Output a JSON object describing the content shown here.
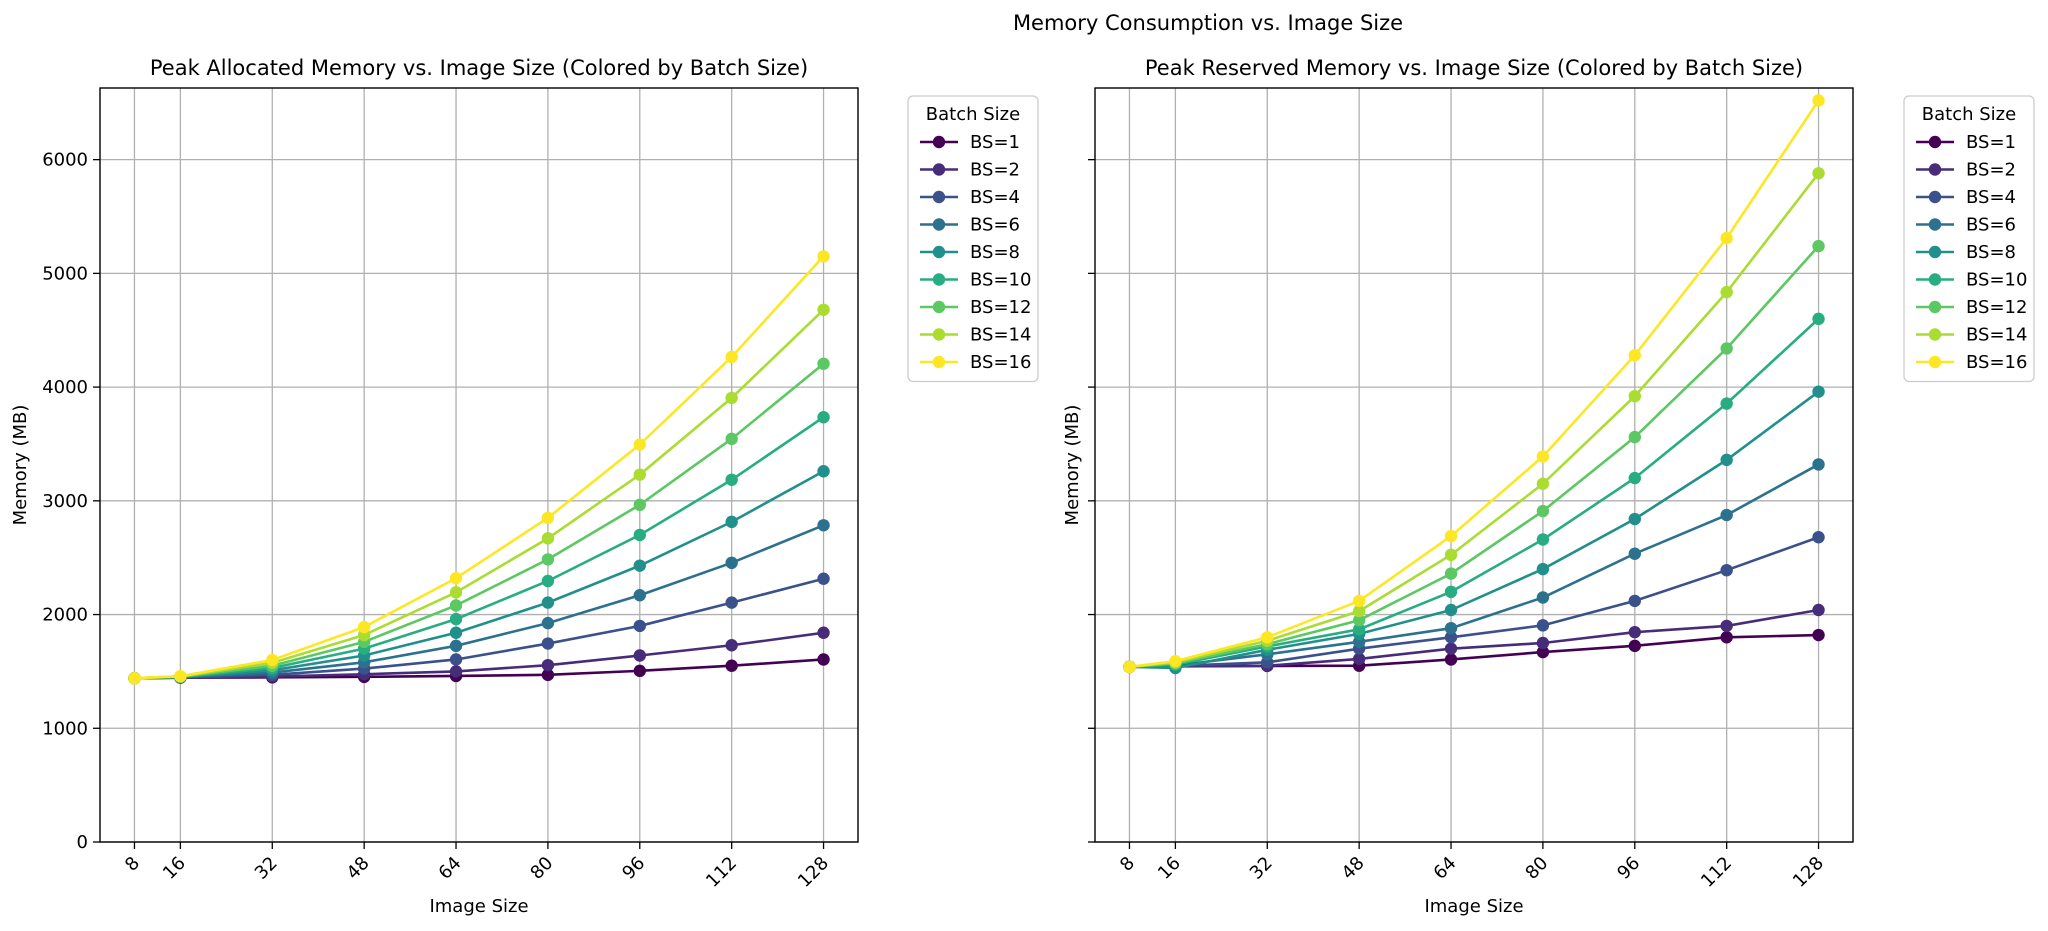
{
  "figure_title": "Memory Consumption vs. Image Size",
  "chart_data": [
    {
      "type": "line",
      "title": "Peak Allocated Memory vs. Image Size (Colored by Batch Size)",
      "xlabel": "Image Size",
      "ylabel": "Memory (MB)",
      "x": [
        8,
        16,
        32,
        48,
        64,
        80,
        96,
        112,
        128
      ],
      "xticks": [
        "8",
        "16",
        "32",
        "48",
        "64",
        "80",
        "96",
        "112",
        "128"
      ],
      "xlim": [
        2,
        134
      ],
      "ylim": [
        0,
        6630
      ],
      "yticks": [
        "0",
        "1000",
        "2000",
        "3000",
        "4000",
        "5000",
        "6000"
      ],
      "grid": true,
      "legend_title": "Batch Size",
      "legend_position": "outside-top-right",
      "series": [
        {
          "name": "BS=1",
          "color": "#440154",
          "values": [
            1440,
            1445,
            1448,
            1452,
            1460,
            1470,
            1505,
            1550,
            1605
          ]
        },
        {
          "name": "BS=2",
          "color": "#472c7a",
          "values": [
            1440,
            1445,
            1455,
            1475,
            1500,
            1555,
            1640,
            1730,
            1840
          ]
        },
        {
          "name": "BS=4",
          "color": "#3b518b",
          "values": [
            1440,
            1446,
            1470,
            1525,
            1605,
            1745,
            1900,
            2105,
            2315
          ]
        },
        {
          "name": "BS=6",
          "color": "#2c718e",
          "values": [
            1440,
            1448,
            1490,
            1580,
            1725,
            1925,
            2170,
            2455,
            2785
          ]
        },
        {
          "name": "BS=8",
          "color": "#21908d",
          "values": [
            1440,
            1450,
            1510,
            1640,
            1840,
            2105,
            2430,
            2815,
            3260
          ]
        },
        {
          "name": "BS=10",
          "color": "#27ad81",
          "values": [
            1440,
            1452,
            1530,
            1700,
            1960,
            2295,
            2700,
            3185,
            3735
          ]
        },
        {
          "name": "BS=12",
          "color": "#5cc863",
          "values": [
            1440,
            1454,
            1550,
            1760,
            2080,
            2485,
            2965,
            3545,
            4205
          ]
        },
        {
          "name": "BS=14",
          "color": "#aadc32",
          "values": [
            1440,
            1456,
            1575,
            1820,
            2195,
            2670,
            3230,
            3905,
            4680
          ]
        },
        {
          "name": "BS=16",
          "color": "#fde725",
          "values": [
            1440,
            1458,
            1600,
            1890,
            2320,
            2850,
            3495,
            4265,
            5150
          ]
        }
      ]
    },
    {
      "type": "line",
      "title": "Peak Reserved Memory vs. Image Size (Colored by Batch Size)",
      "xlabel": "Image Size",
      "ylabel": "Memory (MB)",
      "x": [
        8,
        16,
        32,
        48,
        64,
        80,
        96,
        112,
        128
      ],
      "xticks": [
        "8",
        "16",
        "32",
        "48",
        "64",
        "80",
        "96",
        "112",
        "128"
      ],
      "xlim": [
        2,
        134
      ],
      "ylim": [
        0,
        6630
      ],
      "yticks": [
        "0",
        "1000",
        "2000",
        "3000",
        "4000",
        "5000",
        "6000"
      ],
      "grid": true,
      "legend_title": "Batch Size",
      "legend_position": "outside-top-right",
      "series": [
        {
          "name": "BS=1",
          "color": "#440154",
          "values": [
            1540,
            1545,
            1548,
            1550,
            1605,
            1670,
            1725,
            1800,
            1820
          ]
        },
        {
          "name": "BS=2",
          "color": "#472c7a",
          "values": [
            1540,
            1545,
            1550,
            1610,
            1700,
            1750,
            1845,
            1900,
            2040
          ]
        },
        {
          "name": "BS=4",
          "color": "#3b518b",
          "values": [
            1540,
            1548,
            1580,
            1700,
            1800,
            1905,
            2120,
            2390,
            2680
          ]
        },
        {
          "name": "BS=6",
          "color": "#2c718e",
          "values": [
            1540,
            1552,
            1650,
            1760,
            1880,
            2150,
            2535,
            2875,
            3320
          ]
        },
        {
          "name": "BS=8",
          "color": "#21908d",
          "values": [
            1540,
            1530,
            1690,
            1830,
            2040,
            2400,
            2840,
            3360,
            3960
          ]
        },
        {
          "name": "BS=10",
          "color": "#27ad81",
          "values": [
            1540,
            1560,
            1720,
            1870,
            2200,
            2660,
            3200,
            3855,
            4600
          ]
        },
        {
          "name": "BS=12",
          "color": "#5cc863",
          "values": [
            1540,
            1570,
            1740,
            1950,
            2360,
            2910,
            3560,
            4340,
            5240
          ]
        },
        {
          "name": "BS=14",
          "color": "#aadc32",
          "values": [
            1540,
            1580,
            1770,
            2030,
            2525,
            3150,
            3920,
            4835,
            5880
          ]
        },
        {
          "name": "BS=16",
          "color": "#fde725",
          "values": [
            1540,
            1590,
            1800,
            2120,
            2690,
            3390,
            4280,
            5310,
            6520
          ]
        }
      ]
    }
  ]
}
